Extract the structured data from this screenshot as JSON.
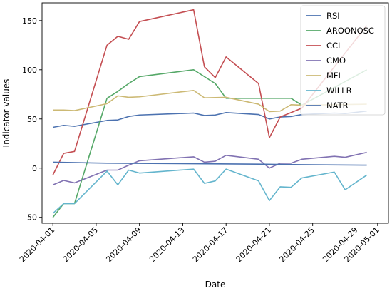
{
  "chart_data": {
    "type": "line",
    "xlabel": "Date",
    "ylabel": "Indicator values",
    "xlim": [
      "2020-03-31",
      "2020-05-02"
    ],
    "ylim": [
      -56,
      168
    ],
    "x_ticks": [
      "2020-04-01",
      "2020-04-05",
      "2020-04-09",
      "2020-04-13",
      "2020-04-17",
      "2020-04-21",
      "2020-04-25",
      "2020-04-29",
      "2020-05-01"
    ],
    "y_ticks": [
      -50,
      0,
      50,
      100,
      150
    ],
    "grid": false,
    "legend": "top-right",
    "series": [
      {
        "name": "RSI",
        "color": "#4c72b0",
        "points": [
          [
            "2020-04-01",
            41.5
          ],
          [
            "2020-04-02",
            43.5
          ],
          [
            "2020-04-03",
            42.5
          ],
          [
            "2020-04-06",
            48.5
          ],
          [
            "2020-04-07",
            49
          ],
          [
            "2020-04-08",
            52.5
          ],
          [
            "2020-04-09",
            54
          ],
          [
            "2020-04-14",
            56
          ],
          [
            "2020-04-15",
            53.5
          ],
          [
            "2020-04-16",
            54
          ],
          [
            "2020-04-17",
            56.5
          ],
          [
            "2020-04-20",
            54.5
          ],
          [
            "2020-04-21",
            50
          ],
          [
            "2020-04-22",
            52
          ],
          [
            "2020-04-23",
            52.5
          ],
          [
            "2020-04-24",
            54.5
          ],
          [
            "2020-04-27",
            56
          ],
          [
            "2020-04-28",
            55.5
          ],
          [
            "2020-04-30",
            58
          ]
        ]
      },
      {
        "name": "AROONOSC",
        "color": "#55a868",
        "points": [
          [
            "2020-04-01",
            -50
          ],
          [
            "2020-04-02",
            -36
          ],
          [
            "2020-04-03",
            -36
          ],
          [
            "2020-04-06",
            71
          ],
          [
            "2020-04-07",
            78
          ],
          [
            "2020-04-08",
            86
          ],
          [
            "2020-04-09",
            93
          ],
          [
            "2020-04-14",
            100
          ],
          [
            "2020-04-16",
            86
          ],
          [
            "2020-04-17",
            71
          ],
          [
            "2020-04-20",
            71
          ],
          [
            "2020-04-23",
            71
          ],
          [
            "2020-04-24",
            64
          ],
          [
            "2020-04-30",
            100
          ]
        ]
      },
      {
        "name": "CCI",
        "color": "#c44e52",
        "points": [
          [
            "2020-04-01",
            -7
          ],
          [
            "2020-04-02",
            15
          ],
          [
            "2020-04-03",
            17
          ],
          [
            "2020-04-06",
            125
          ],
          [
            "2020-04-07",
            134
          ],
          [
            "2020-04-08",
            131
          ],
          [
            "2020-04-09",
            149
          ],
          [
            "2020-04-14",
            161
          ],
          [
            "2020-04-15",
            103
          ],
          [
            "2020-04-16",
            92
          ],
          [
            "2020-04-17",
            113
          ],
          [
            "2020-04-20",
            86
          ],
          [
            "2020-04-21",
            31
          ],
          [
            "2020-04-22",
            52
          ],
          [
            "2020-04-24",
            61
          ],
          [
            "2020-04-30",
            145
          ]
        ]
      },
      {
        "name": "CMO",
        "color": "#8172b2",
        "points": [
          [
            "2020-04-01",
            -17
          ],
          [
            "2020-04-02",
            -12.5
          ],
          [
            "2020-04-03",
            -15
          ],
          [
            "2020-04-06",
            -2
          ],
          [
            "2020-04-07",
            -2
          ],
          [
            "2020-04-08",
            3
          ],
          [
            "2020-04-09",
            7.5
          ],
          [
            "2020-04-14",
            11.5
          ],
          [
            "2020-04-15",
            6
          ],
          [
            "2020-04-16",
            7
          ],
          [
            "2020-04-17",
            13
          ],
          [
            "2020-04-20",
            9
          ],
          [
            "2020-04-21",
            0
          ],
          [
            "2020-04-22",
            5
          ],
          [
            "2020-04-23",
            5
          ],
          [
            "2020-04-24",
            9
          ],
          [
            "2020-04-27",
            12
          ],
          [
            "2020-04-28",
            11
          ],
          [
            "2020-04-30",
            16
          ]
        ]
      },
      {
        "name": "MFI",
        "color": "#ccb974",
        "points": [
          [
            "2020-04-01",
            59
          ],
          [
            "2020-04-02",
            59
          ],
          [
            "2020-04-03",
            58.5
          ],
          [
            "2020-04-06",
            65.5
          ],
          [
            "2020-04-07",
            73.5
          ],
          [
            "2020-04-08",
            72
          ],
          [
            "2020-04-09",
            72.5
          ],
          [
            "2020-04-14",
            79
          ],
          [
            "2020-04-15",
            71.5
          ],
          [
            "2020-04-17",
            72
          ],
          [
            "2020-04-20",
            65
          ],
          [
            "2020-04-21",
            57.5
          ],
          [
            "2020-04-22",
            58
          ],
          [
            "2020-04-23",
            64.5
          ],
          [
            "2020-04-24",
            64
          ],
          [
            "2020-04-30",
            65
          ]
        ]
      },
      {
        "name": "WILLR",
        "color": "#64b5cd",
        "points": [
          [
            "2020-04-01",
            -46
          ],
          [
            "2020-04-02",
            -36
          ],
          [
            "2020-04-03",
            -36
          ],
          [
            "2020-04-06",
            -3
          ],
          [
            "2020-04-07",
            -17
          ],
          [
            "2020-04-08",
            -2
          ],
          [
            "2020-04-09",
            -5
          ],
          [
            "2020-04-14",
            -1
          ],
          [
            "2020-04-15",
            -15.5
          ],
          [
            "2020-04-16",
            -13
          ],
          [
            "2020-04-17",
            -1
          ],
          [
            "2020-04-20",
            -13
          ],
          [
            "2020-04-21",
            -33
          ],
          [
            "2020-04-22",
            -19
          ],
          [
            "2020-04-23",
            -19.5
          ],
          [
            "2020-04-24",
            -10
          ],
          [
            "2020-04-27",
            -4
          ],
          [
            "2020-04-28",
            -22
          ],
          [
            "2020-04-30",
            -7
          ]
        ]
      },
      {
        "name": "NATR",
        "color": "#4c72b0",
        "points": [
          [
            "2020-04-01",
            6
          ],
          [
            "2020-04-06",
            5
          ],
          [
            "2020-04-14",
            4.5
          ],
          [
            "2020-04-20",
            4
          ],
          [
            "2020-04-24",
            3.5
          ],
          [
            "2020-04-30",
            3
          ]
        ]
      }
    ]
  }
}
